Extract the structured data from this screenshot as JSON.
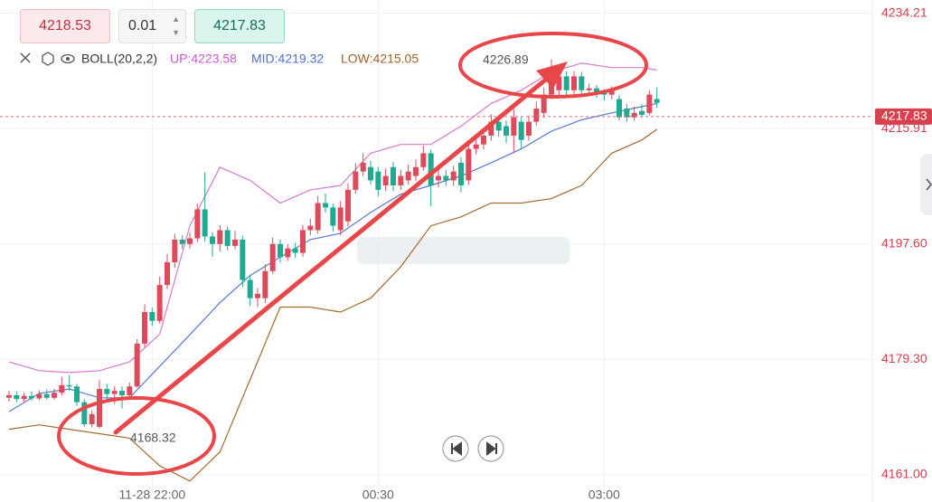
{
  "order_panel": {
    "buy": "4218.53",
    "lot": "0.01",
    "sell": "4217.83"
  },
  "chart_data": {
    "type": "candlestick",
    "indicator": {
      "name": "BOLL(20,2,2)",
      "up": "UP:4223.58",
      "mid": "MID:4219.32",
      "low": "LOW:4215.05"
    },
    "open": [
      4173.2,
      4173.6,
      4173.0,
      4173.5,
      4173.1,
      4173.8,
      4173.2,
      4174.0,
      4175.2,
      4175.0,
      4172.5,
      4169.0,
      4168.6,
      4174.6,
      4173.8,
      4174.3,
      4173.6,
      4175.0,
      4181.8,
      4186.8,
      4185.4,
      4191.1,
      4194.7,
      4198.3,
      4197.6,
      4198.5,
      4203.1,
      4198.8,
      4197.6,
      4199.8,
      4197.3,
      4198.3,
      4191.9,
      4189.0,
      4189.0,
      4193.3,
      4197.6,
      4195.5,
      4196.9,
      4196.2,
      4199.8,
      4199.8,
      4204.1,
      4203.4,
      4199.8,
      4201.2,
      4206.2,
      4209.1,
      4209.8,
      4209.1,
      4206.9,
      4209.8,
      4206.9,
      4207.7,
      4208.4,
      4209.8,
      4212.0,
      4207.7,
      4208.4,
      4207.7,
      4210.5,
      4207.7,
      4212.7,
      4213.4,
      4214.8,
      4217.0,
      4216.3,
      4214.8,
      4217.0,
      4214.8,
      4217.0,
      4218.4,
      4221.3,
      4222.0,
      4224.2,
      4222.0,
      4224.2,
      4222.0,
      4222.3,
      4221.7,
      4221.3,
      4220.6,
      4219.1,
      4217.7,
      4218.7,
      4218.4,
      4220.6
    ],
    "high": [
      4174.3,
      4174.2,
      4174.0,
      4174.2,
      4174.4,
      4174.5,
      4174.6,
      4176.5,
      4176.8,
      4175.4,
      4173.0,
      4171.2,
      4176.0,
      4175.4,
      4175.0,
      4175.0,
      4175.6,
      4182.5,
      4188.0,
      4187.5,
      4192.4,
      4196.0,
      4199.2,
      4199.0,
      4199.4,
      4204.0,
      4209.0,
      4199.5,
      4200.6,
      4200.4,
      4199.7,
      4198.9,
      4192.6,
      4190.6,
      4194.4,
      4198.6,
      4198.3,
      4197.6,
      4197.8,
      4200.6,
      4201.6,
      4205.2,
      4205.6,
      4204.0,
      4204.4,
      4207.2,
      4210.4,
      4212.0,
      4210.8,
      4209.8,
      4209.6,
      4210.6,
      4209.4,
      4210.2,
      4211.0,
      4213.2,
      4212.6,
      4209.6,
      4209.4,
      4210.0,
      4211.4,
      4213.6,
      4214.6,
      4216.0,
      4218.2,
      4218.0,
      4217.2,
      4219.0,
      4217.8,
      4218.0,
      4220.2,
      4222.4,
      4226.89,
      4225.4,
      4225.0,
      4225.0,
      4224.9,
      4223.0,
      4222.8,
      4222.2,
      4222.6,
      4221.2,
      4219.8,
      4219.4,
      4219.8,
      4222.0,
      4222.4
    ],
    "low": [
      4172.6,
      4172.5,
      4172.4,
      4172.7,
      4172.8,
      4172.9,
      4172.9,
      4173.6,
      4174.3,
      4171.9,
      4168.6,
      4168.5,
      4168.32,
      4173.0,
      4172.2,
      4171.5,
      4173.2,
      4174.8,
      4181.2,
      4184.6,
      4185.0,
      4190.5,
      4193.8,
      4196.8,
      4196.9,
      4197.9,
      4198.0,
      4195.6,
      4196.4,
      4196.6,
      4196.8,
      4190.8,
      4187.8,
      4187.6,
      4188.2,
      4192.9,
      4194.6,
      4194.9,
      4195.4,
      4195.6,
      4199.0,
      4199.2,
      4202.6,
      4199.6,
      4199.0,
      4200.4,
      4205.6,
      4208.4,
      4207.0,
      4205.2,
      4206.0,
      4206.0,
      4206.2,
      4207.0,
      4207.6,
      4209.2,
      4203.6,
      4206.6,
      4206.8,
      4206.8,
      4205.8,
      4207.0,
      4211.8,
      4212.6,
      4214.0,
      4214.6,
      4213.6,
      4212.0,
      4212.8,
      4214.0,
      4216.4,
      4217.6,
      4220.6,
      4221.2,
      4221.0,
      4221.4,
      4221.2,
      4221.4,
      4220.8,
      4220.4,
      4220.6,
      4217.2,
      4217.0,
      4217.2,
      4217.6,
      4218.0,
      4219.2
    ],
    "close": [
      4173.6,
      4173.0,
      4173.5,
      4173.1,
      4173.8,
      4173.2,
      4174.0,
      4175.2,
      4175.0,
      4172.5,
      4169.0,
      4170.6,
      4174.6,
      4173.8,
      4174.3,
      4173.6,
      4175.0,
      4181.8,
      4186.8,
      4185.4,
      4191.1,
      4194.7,
      4198.3,
      4197.6,
      4198.5,
      4203.1,
      4198.8,
      4197.6,
      4199.8,
      4197.3,
      4198.3,
      4191.9,
      4189.0,
      4189.7,
      4193.3,
      4197.6,
      4195.5,
      4196.9,
      4196.2,
      4199.8,
      4200.5,
      4204.1,
      4203.4,
      4200.5,
      4203.4,
      4206.2,
      4209.1,
      4210.5,
      4207.7,
      4206.2,
      4208.4,
      4206.9,
      4208.4,
      4209.1,
      4209.8,
      4212.0,
      4206.9,
      4208.4,
      4207.7,
      4209.1,
      4206.9,
      4212.7,
      4213.4,
      4214.8,
      4217.0,
      4215.6,
      4214.8,
      4217.7,
      4214.1,
      4217.0,
      4219.1,
      4221.3,
      4223.7,
      4224.2,
      4222.0,
      4224.2,
      4222.0,
      4222.3,
      4221.7,
      4221.3,
      4222.0,
      4217.7,
      4217.7,
      4218.4,
      4218.1,
      4221.3,
      4220.0
    ],
    "up_color": "#dc4a5c",
    "down_color": "#22a98f",
    "bands": {
      "x": [
        0,
        4,
        8,
        12,
        16,
        20,
        24,
        28,
        32,
        36,
        40,
        44,
        48,
        52,
        56,
        60,
        64,
        68,
        72,
        76,
        80,
        84,
        86
      ],
      "upper": [
        4178.9,
        4177.5,
        4177.2,
        4177.5,
        4178.9,
        4183.3,
        4200.5,
        4209.8,
        4207.7,
        4204.1,
        4206.2,
        4206.9,
        4212.0,
        4213.4,
        4213.4,
        4216.3,
        4219.9,
        4222.0,
        4224.9,
        4226.3,
        4225.6,
        4225.6,
        4225.2
      ],
      "mid": [
        4171.0,
        4173.9,
        4174.6,
        4173.2,
        4173.2,
        4178.2,
        4183.2,
        4188.3,
        4192.6,
        4195.5,
        4198.3,
        4199.3,
        4202.6,
        4205.5,
        4206.9,
        4208.4,
        4210.5,
        4212.7,
        4215.5,
        4217.3,
        4218.4,
        4219.4,
        4219.9
      ],
      "lower": [
        4168.2,
        4168.9,
        4168.2,
        4167.5,
        4166.8,
        4162.4,
        4160.0,
        4164.6,
        4176.1,
        4187.6,
        4187.6,
        4186.8,
        4189.0,
        4194.0,
        4200.5,
        4201.9,
        4204.1,
        4204.1,
        4204.8,
        4206.9,
        4212.0,
        4214.1,
        4215.8
      ],
      "upper_color": "#d77ad0",
      "mid_color": "#5a78d6",
      "lower_color": "#a56a32"
    },
    "last_price": 4217.83,
    "max_index": 72,
    "min_index": 12,
    "xlim": [
      -1.2,
      114.6
    ],
    "ylim": [
      4158.1,
      4235.6
    ],
    "xticks": [
      {
        "value": 19,
        "label": "11-28 22:00"
      },
      {
        "value": 49,
        "label": "00:30"
      },
      {
        "value": 79,
        "label": "03:00"
      }
    ],
    "yticks": [
      4234.21,
      4215.91,
      {
        "value": 4197.6,
        "label": "4197.60"
      },
      {
        "value": 4179.3,
        "label": "4179.30"
      },
      {
        "value": 4161,
        "label": "4161.00"
      }
    ],
    "grid": true
  }
}
